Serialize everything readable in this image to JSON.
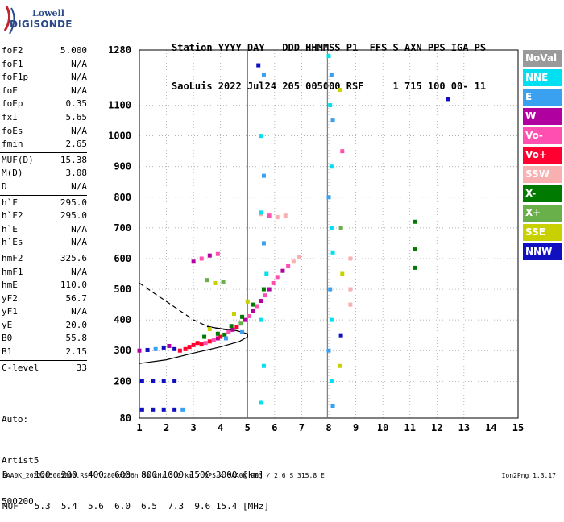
{
  "logo": {
    "line1": "Lowell",
    "line2": "DIGISONDE"
  },
  "header": {
    "line1": "Station YYYY DAY   DDD HHMMSS P1  FFS S AXN PPS IGA PS",
    "line2": "SaoLuis 2022 Jul24 205 005000 RSF     1 715 100 00- 11"
  },
  "params": [
    {
      "name": "foF2",
      "value": "5.000"
    },
    {
      "name": "foF1",
      "value": "N/A"
    },
    {
      "name": "foF1p",
      "value": "N/A"
    },
    {
      "name": "foE",
      "value": "N/A"
    },
    {
      "name": "foEp",
      "value": "0.35"
    },
    {
      "name": "fxI",
      "value": "5.65"
    },
    {
      "name": "foEs",
      "value": "N/A"
    },
    {
      "name": "fmin",
      "value": "2.65"
    },
    {
      "sep": true
    },
    {
      "name": "MUF(D)",
      "value": "15.38"
    },
    {
      "name": "M(D)",
      "value": "3.08"
    },
    {
      "name": "D",
      "value": "N/A"
    },
    {
      "sep": true
    },
    {
      "name": "h`F",
      "value": "295.0"
    },
    {
      "name": "h`F2",
      "value": "295.0"
    },
    {
      "name": "h`E",
      "value": "N/A"
    },
    {
      "name": "h`Es",
      "value": "N/A"
    },
    {
      "sep": true
    },
    {
      "name": "hmF2",
      "value": "325.6"
    },
    {
      "name": "hmF1",
      "value": "N/A"
    },
    {
      "name": "hmE",
      "value": "110.0"
    },
    {
      "name": "yF2",
      "value": "56.7"
    },
    {
      "name": "yF1",
      "value": "N/A"
    },
    {
      "name": "yE",
      "value": "20.0"
    },
    {
      "name": "B0",
      "value": "55.8"
    },
    {
      "name": "B1",
      "value": "2.15"
    },
    {
      "sep": true
    },
    {
      "name": "C-level",
      "value": "33"
    }
  ],
  "artist": {
    "line1": "Auto:",
    "line2": "Artist5",
    "line3": "500200"
  },
  "legend": [
    {
      "label": "NoVal",
      "color": "#9a9a9a"
    },
    {
      "label": "NNE",
      "color": "#00e0f0"
    },
    {
      "label": "E",
      "color": "#3aa0f0"
    },
    {
      "label": "W",
      "color": "#b000a0"
    },
    {
      "label": "Vo-",
      "color": "#ff4fb0"
    },
    {
      "label": "Vo+",
      "color": "#ff0030"
    },
    {
      "label": "SSW",
      "color": "#f8b0b0"
    },
    {
      "label": "X-",
      "color": "#007a00"
    },
    {
      "label": "X+",
      "color": "#6ab04a"
    },
    {
      "label": "SSE",
      "color": "#c8d000"
    },
    {
      "label": "NNW",
      "color": "#1010c0"
    }
  ],
  "distance_table": {
    "line1": "D     100  200  400  600  800 1000 1500 3000 [km]",
    "line2": "MUF   5.3  5.4  5.6  6.0  6.5  7.3  9.6 15.4 [MHz]"
  },
  "footer": {
    "left": "SAA0K_2022205005000.RSF / 280fx256h 50 kHz 5.0 km / DPS-4 SAA0K 903 / 2.6 S 315.8 E",
    "right": "Ion2Png 1.3.17"
  },
  "chart_data": {
    "type": "scatter",
    "x_ticks": [
      "1",
      "2",
      "3",
      "4",
      "5",
      "6",
      "7",
      "8",
      "9",
      "10",
      "11",
      "12",
      "13",
      "14",
      "15"
    ],
    "y_ticks": [
      "80",
      "200",
      "300",
      "400",
      "500",
      "600",
      "700",
      "800",
      "900",
      "1000",
      "1100",
      "1280"
    ],
    "xlim": [
      1,
      15
    ],
    "ylim": [
      80,
      1280
    ],
    "grid": true,
    "points": [
      {
        "x": 1.0,
        "y": 300,
        "c": "W"
      },
      {
        "x": 1.3,
        "y": 302,
        "c": "NNW"
      },
      {
        "x": 1.6,
        "y": 305,
        "c": "E"
      },
      {
        "x": 1.9,
        "y": 310,
        "c": "NNW"
      },
      {
        "x": 2.1,
        "y": 315,
        "c": "W"
      },
      {
        "x": 2.3,
        "y": 305,
        "c": "NNW"
      },
      {
        "x": 2.5,
        "y": 300,
        "c": "Vo+"
      },
      {
        "x": 2.7,
        "y": 305,
        "c": "Vo+"
      },
      {
        "x": 2.85,
        "y": 312,
        "c": "Vo+"
      },
      {
        "x": 3.0,
        "y": 318,
        "c": "Vo+"
      },
      {
        "x": 3.15,
        "y": 325,
        "c": "Vo+"
      },
      {
        "x": 3.3,
        "y": 320,
        "c": "Vo+"
      },
      {
        "x": 3.45,
        "y": 325,
        "c": "Vo-"
      },
      {
        "x": 3.6,
        "y": 330,
        "c": "Vo+"
      },
      {
        "x": 3.75,
        "y": 335,
        "c": "Vo-"
      },
      {
        "x": 3.9,
        "y": 340,
        "c": "W"
      },
      {
        "x": 4.0,
        "y": 345,
        "c": "Vo+"
      },
      {
        "x": 4.15,
        "y": 352,
        "c": "X-"
      },
      {
        "x": 4.3,
        "y": 360,
        "c": "Vo-"
      },
      {
        "x": 4.45,
        "y": 368,
        "c": "W"
      },
      {
        "x": 4.6,
        "y": 378,
        "c": "Vo+"
      },
      {
        "x": 4.75,
        "y": 388,
        "c": "X+"
      },
      {
        "x": 4.9,
        "y": 400,
        "c": "W"
      },
      {
        "x": 5.05,
        "y": 412,
        "c": "Vo-"
      },
      {
        "x": 5.2,
        "y": 428,
        "c": "W"
      },
      {
        "x": 5.35,
        "y": 445,
        "c": "Vo-"
      },
      {
        "x": 5.5,
        "y": 462,
        "c": "W"
      },
      {
        "x": 5.65,
        "y": 480,
        "c": "Vo-"
      },
      {
        "x": 5.8,
        "y": 500,
        "c": "W"
      },
      {
        "x": 5.95,
        "y": 520,
        "c": "Vo-"
      },
      {
        "x": 6.1,
        "y": 540,
        "c": "Vo-"
      },
      {
        "x": 6.3,
        "y": 560,
        "c": "W"
      },
      {
        "x": 6.5,
        "y": 575,
        "c": "Vo-"
      },
      {
        "x": 6.7,
        "y": 590,
        "c": "SSW"
      },
      {
        "x": 6.9,
        "y": 605,
        "c": "SSW"
      },
      {
        "x": 3.4,
        "y": 345,
        "c": "X-"
      },
      {
        "x": 3.9,
        "y": 355,
        "c": "X-"
      },
      {
        "x": 4.4,
        "y": 380,
        "c": "X-"
      },
      {
        "x": 4.8,
        "y": 410,
        "c": "X-"
      },
      {
        "x": 5.2,
        "y": 450,
        "c": "X-"
      },
      {
        "x": 5.6,
        "y": 500,
        "c": "X-"
      },
      {
        "x": 3.6,
        "y": 370,
        "c": "SSE"
      },
      {
        "x": 4.5,
        "y": 420,
        "c": "SSE"
      },
      {
        "x": 5.0,
        "y": 460,
        "c": "SSE"
      },
      {
        "x": 4.2,
        "y": 340,
        "c": "E"
      },
      {
        "x": 4.8,
        "y": 360,
        "c": "E"
      },
      {
        "x": 1.1,
        "y": 200,
        "c": "NNW"
      },
      {
        "x": 1.5,
        "y": 200,
        "c": "NNW"
      },
      {
        "x": 1.9,
        "y": 200,
        "c": "NNW"
      },
      {
        "x": 2.3,
        "y": 200,
        "c": "NNW"
      },
      {
        "x": 1.1,
        "y": 108,
        "c": "NNW"
      },
      {
        "x": 1.5,
        "y": 108,
        "c": "NNW"
      },
      {
        "x": 1.9,
        "y": 108,
        "c": "NNW"
      },
      {
        "x": 2.3,
        "y": 108,
        "c": "NNW"
      },
      {
        "x": 2.6,
        "y": 108,
        "c": "E"
      },
      {
        "x": 3.0,
        "y": 590,
        "c": "W"
      },
      {
        "x": 3.3,
        "y": 600,
        "c": "Vo-"
      },
      {
        "x": 3.6,
        "y": 610,
        "c": "W"
      },
      {
        "x": 3.9,
        "y": 615,
        "c": "Vo-"
      },
      {
        "x": 3.5,
        "y": 530,
        "c": "X+"
      },
      {
        "x": 3.8,
        "y": 520,
        "c": "SSE"
      },
      {
        "x": 4.1,
        "y": 525,
        "c": "X+"
      },
      {
        "x": 5.5,
        "y": 745,
        "c": "SSW"
      },
      {
        "x": 5.8,
        "y": 740,
        "c": "Vo-"
      },
      {
        "x": 6.1,
        "y": 735,
        "c": "SSW"
      },
      {
        "x": 6.4,
        "y": 740,
        "c": "SSW"
      },
      {
        "x": 5.4,
        "y": 1230,
        "c": "NNW"
      },
      {
        "x": 5.6,
        "y": 1200,
        "c": "E"
      },
      {
        "x": 5.5,
        "y": 1000,
        "c": "NNE"
      },
      {
        "x": 5.6,
        "y": 870,
        "c": "E"
      },
      {
        "x": 5.5,
        "y": 750,
        "c": "NNE"
      },
      {
        "x": 5.6,
        "y": 650,
        "c": "E"
      },
      {
        "x": 5.7,
        "y": 550,
        "c": "NNE"
      },
      {
        "x": 5.5,
        "y": 400,
        "c": "NNE"
      },
      {
        "x": 5.6,
        "y": 250,
        "c": "NNE"
      },
      {
        "x": 5.5,
        "y": 130,
        "c": "NNE"
      },
      {
        "x": 8.0,
        "y": 1260,
        "c": "NNE"
      },
      {
        "x": 8.1,
        "y": 1200,
        "c": "E"
      },
      {
        "x": 8.05,
        "y": 1100,
        "c": "NNE"
      },
      {
        "x": 8.15,
        "y": 1050,
        "c": "E"
      },
      {
        "x": 8.1,
        "y": 900,
        "c": "NNE"
      },
      {
        "x": 8.0,
        "y": 800,
        "c": "E"
      },
      {
        "x": 8.1,
        "y": 700,
        "c": "NNE"
      },
      {
        "x": 8.15,
        "y": 620,
        "c": "NNE"
      },
      {
        "x": 8.05,
        "y": 500,
        "c": "E"
      },
      {
        "x": 8.1,
        "y": 400,
        "c": "NNE"
      },
      {
        "x": 8.0,
        "y": 300,
        "c": "E"
      },
      {
        "x": 8.1,
        "y": 200,
        "c": "NNE"
      },
      {
        "x": 8.15,
        "y": 120,
        "c": "E"
      },
      {
        "x": 8.4,
        "y": 1150,
        "c": "SSE"
      },
      {
        "x": 8.5,
        "y": 950,
        "c": "Vo-"
      },
      {
        "x": 8.45,
        "y": 700,
        "c": "X+"
      },
      {
        "x": 8.5,
        "y": 550,
        "c": "SSE"
      },
      {
        "x": 8.45,
        "y": 350,
        "c": "NNW"
      },
      {
        "x": 8.4,
        "y": 250,
        "c": "SSE"
      },
      {
        "x": 8.8,
        "y": 600,
        "c": "SSW"
      },
      {
        "x": 8.8,
        "y": 500,
        "c": "SSW"
      },
      {
        "x": 8.8,
        "y": 450,
        "c": "SSW"
      },
      {
        "x": 11.2,
        "y": 720,
        "c": "X-"
      },
      {
        "x": 11.2,
        "y": 630,
        "c": "X-"
      },
      {
        "x": 11.2,
        "y": 570,
        "c": "X-"
      },
      {
        "x": 12.4,
        "y": 1120,
        "c": "NNW"
      }
    ],
    "trace_solid": [
      [
        1,
        258
      ],
      [
        2,
        270
      ],
      [
        3,
        292
      ],
      [
        4,
        312
      ],
      [
        4.7,
        330
      ],
      [
        5.0,
        345
      ],
      [
        5.0,
        355
      ],
      [
        4.6,
        365
      ],
      [
        4.0,
        372
      ],
      [
        3.5,
        378
      ]
    ],
    "trace_dashed": [
      [
        1,
        520
      ],
      [
        1.5,
        490
      ],
      [
        2,
        460
      ],
      [
        2.5,
        430
      ],
      [
        3,
        400
      ],
      [
        3.5,
        380
      ],
      [
        4,
        370
      ],
      [
        4.5,
        365
      ]
    ],
    "vertical_markers": [
      5.0,
      7.95
    ]
  }
}
